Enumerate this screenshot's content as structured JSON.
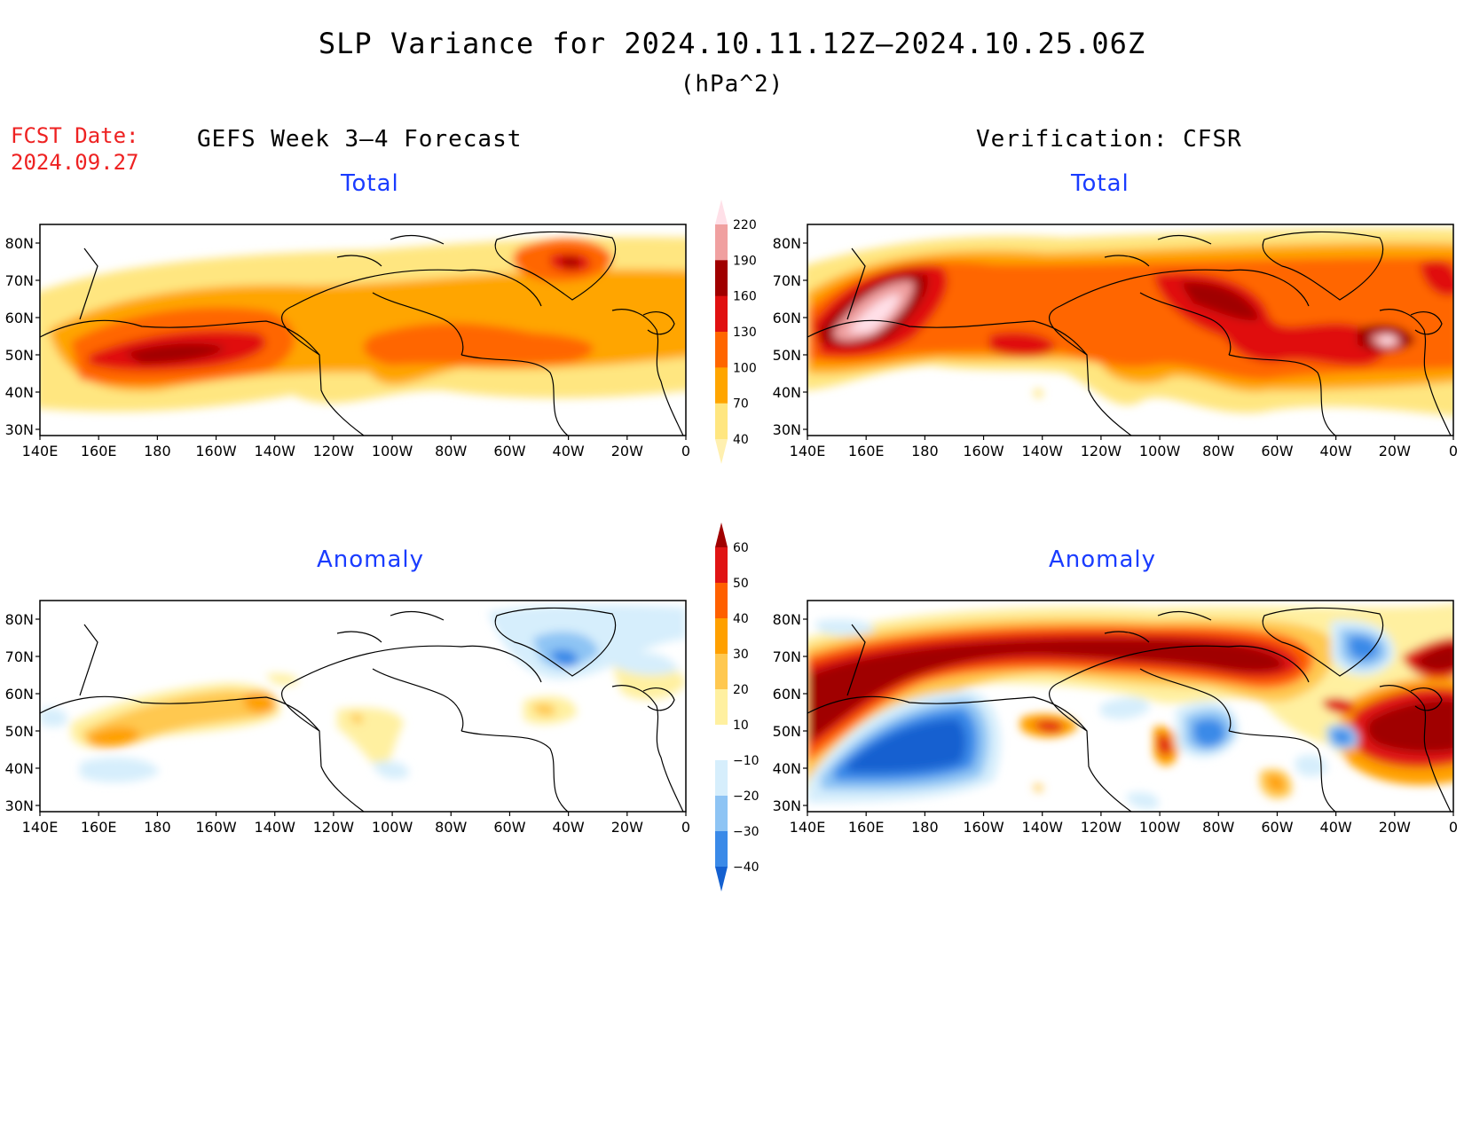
{
  "title": "SLP Variance for 2024.10.11.12Z–2024.10.25.06Z",
  "units": "(hPa^2)",
  "fcst_date_label": "FCST Date:",
  "fcst_date": "2024.09.27",
  "left_heading": "GEFS Week 3–4 Forecast",
  "right_heading": "Verification: CFSR",
  "panels": [
    {
      "id": "forecast-total",
      "subtitle": "Total"
    },
    {
      "id": "verification-total",
      "subtitle": "Total"
    },
    {
      "id": "forecast-anomaly",
      "subtitle": "Anomaly"
    },
    {
      "id": "verification-anomaly",
      "subtitle": "Anomaly"
    }
  ],
  "x_ticks": [
    "140E",
    "160E",
    "180",
    "160W",
    "140W",
    "120W",
    "100W",
    "80W",
    "60W",
    "40W",
    "20W",
    "0"
  ],
  "y_ticks": [
    "80N",
    "70N",
    "60N",
    "50N",
    "40N",
    "30N"
  ],
  "chart_data": {
    "type": "heatmap",
    "total_colorbar": {
      "levels": [
        "40",
        "70",
        "100",
        "130",
        "160",
        "190",
        "220"
      ],
      "colors": [
        "#fff0b0",
        "#ffe680",
        "#ffa500",
        "#ff6600",
        "#e01010",
        "#a00000",
        "#f0a0a0",
        "#ffe0e8"
      ]
    },
    "anomaly_colorbar": {
      "levels": [
        "−40",
        "−30",
        "−20",
        "−10",
        "10",
        "20",
        "30",
        "40",
        "50",
        "60"
      ],
      "colors": [
        "#1460d0",
        "#3a8ae8",
        "#8ec4f4",
        "#d6eefc",
        "#ffffff",
        "#fff0a0",
        "#ffc850",
        "#ffa000",
        "#ff6000",
        "#e01414",
        "#a00000"
      ]
    }
  }
}
